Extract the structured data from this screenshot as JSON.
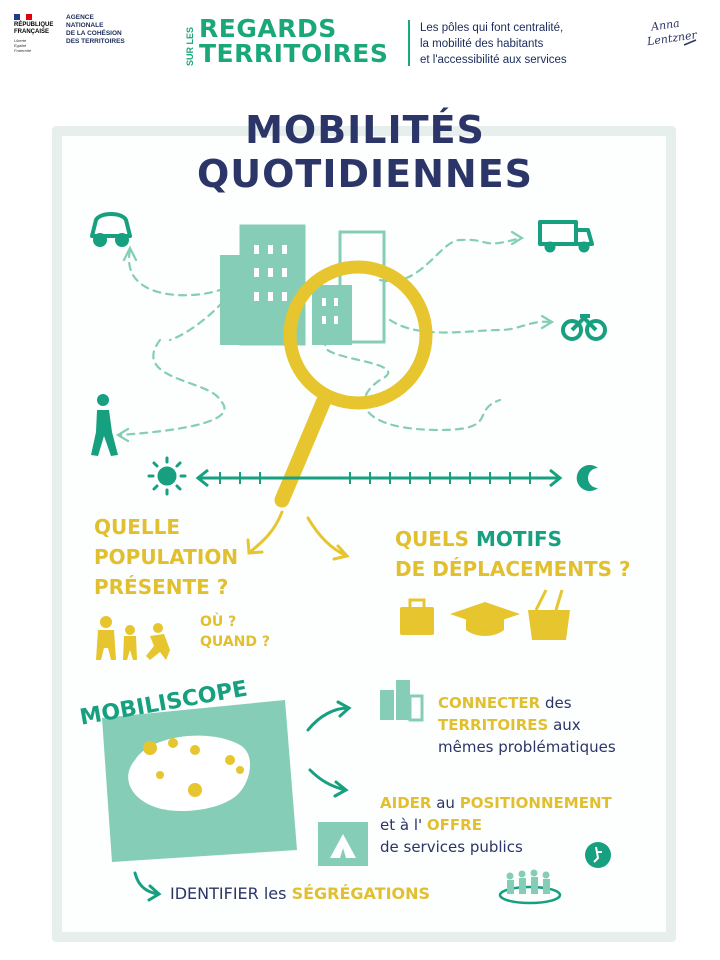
{
  "header": {
    "gov_logo": [
      "RÉPUBLIQUE",
      "FRANÇAISE"
    ],
    "gov_motto": [
      "Liberté",
      "Égalité",
      "Fraternité"
    ],
    "agency": [
      "AGENCE",
      "NATIONALE",
      "DE LA COHÉSION",
      "DES TERRITOIRES"
    ],
    "brand_side": "SUR LES",
    "brand_line1": "REGARDS",
    "brand_line2": "TERRITOIRES",
    "subtitle": [
      "Les pôles qui font centralité,",
      "la mobilité des habitants",
      "et l'accessibilité aux services"
    ],
    "signature": [
      "Anna",
      "Lentzner"
    ]
  },
  "poster": {
    "title": "MOBILITÉS QUOTIDIENNES",
    "question_population": [
      "QUELLE",
      "POPULATION",
      "PRÉSENTE ?"
    ],
    "question_where": "OÙ ?",
    "question_when": "QUAND ?",
    "question_motifs_a": "QUELS",
    "question_motifs_b": "MOTIFS",
    "question_motifs_c": "DE DÉPLACEMENTS ?",
    "mobiliscope": "MOBILISCOPE",
    "connect_a": "CONNECTER",
    "connect_b": "des",
    "connect_c": "TERRITOIRES",
    "connect_d": "aux",
    "connect_e": "mêmes problématiques",
    "help_a": "AIDER",
    "help_b": "au",
    "help_c": "POSITIONNEMENT",
    "help_d": "et à l'",
    "help_e": "OFFRE",
    "help_f": "de services publics",
    "segregation_a": "IDENTIFIER les",
    "segregation_b": "SÉGRÉGATIONS"
  },
  "colors": {
    "teal": "#16a07f",
    "mint": "#86cdb8",
    "yellow": "#e6c52e",
    "navy": "#2b3567",
    "panel": "#e6efec"
  },
  "icons": [
    "car-icon",
    "truck-icon",
    "bicycle-icon",
    "pedestrian-icon",
    "sun-icon",
    "moon-icon",
    "magnifier-icon",
    "bag-icon",
    "graduation-cap-icon",
    "shopping-basket-icon",
    "buildings-icon",
    "tent-icon",
    "accessibility-icon",
    "people-group-icon"
  ]
}
